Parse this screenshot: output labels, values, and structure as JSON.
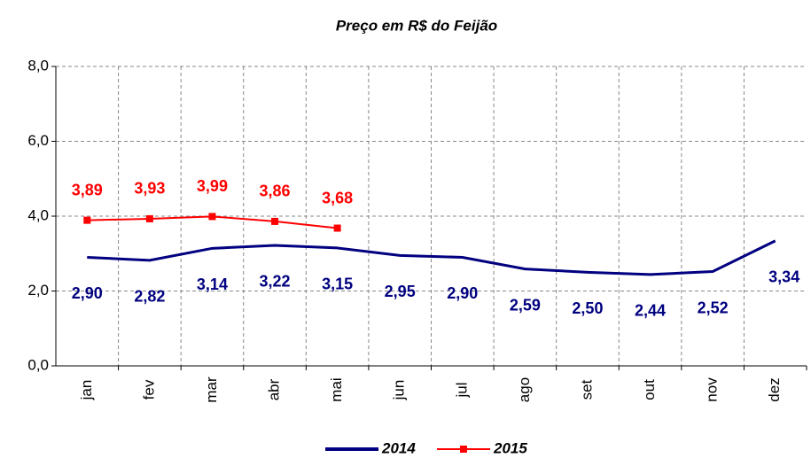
{
  "chart_data": {
    "type": "line",
    "title": "Preço em R$ do Feijão",
    "categories": [
      "jan",
      "fev",
      "mar",
      "abr",
      "mai",
      "jun",
      "jul",
      "ago",
      "set",
      "out",
      "nov",
      "dez"
    ],
    "series": [
      {
        "name": "2014",
        "color": "#000080",
        "values": [
          2.9,
          2.82,
          3.14,
          3.22,
          3.15,
          2.95,
          2.9,
          2.59,
          2.5,
          2.44,
          2.52,
          3.34
        ],
        "value_labels": [
          "2,90",
          "2,82",
          "3,14",
          "3,22",
          "3,15",
          "2,95",
          "2,90",
          "2,59",
          "2,50",
          "2,44",
          "2,52",
          "3,34"
        ]
      },
      {
        "name": "2015",
        "color": "#ff0000",
        "values": [
          3.89,
          3.93,
          3.99,
          3.86,
          3.68,
          null,
          null,
          null,
          null,
          null,
          null,
          null
        ],
        "value_labels": [
          "3,89",
          "3,93",
          "3,99",
          "3,86",
          "3,68",
          null,
          null,
          null,
          null,
          null,
          null,
          null
        ]
      }
    ],
    "ylim": [
      0,
      8
    ],
    "yticks": [
      {
        "value": 0,
        "label": "0,0"
      },
      {
        "value": 2,
        "label": "2,0"
      },
      {
        "value": 4,
        "label": "4,0"
      },
      {
        "value": 6,
        "label": "6,0"
      },
      {
        "value": 8,
        "label": "8,0"
      }
    ],
    "grid": true,
    "legend": "bottom"
  }
}
